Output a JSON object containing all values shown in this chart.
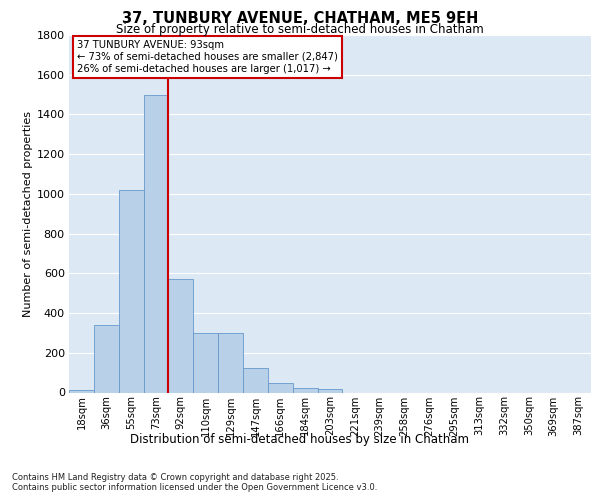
{
  "title1": "37, TUNBURY AVENUE, CHATHAM, ME5 9EH",
  "title2": "Size of property relative to semi-detached houses in Chatham",
  "xlabel": "Distribution of semi-detached houses by size in Chatham",
  "ylabel": "Number of semi-detached properties",
  "categories": [
    "18sqm",
    "36sqm",
    "55sqm",
    "73sqm",
    "92sqm",
    "110sqm",
    "129sqm",
    "147sqm",
    "166sqm",
    "184sqm",
    "203sqm",
    "221sqm",
    "239sqm",
    "258sqm",
    "276sqm",
    "295sqm",
    "313sqm",
    "332sqm",
    "350sqm",
    "369sqm",
    "387sqm"
  ],
  "values": [
    15,
    340,
    1020,
    1500,
    570,
    300,
    300,
    125,
    50,
    25,
    20,
    0,
    0,
    0,
    0,
    0,
    0,
    0,
    0,
    0,
    0
  ],
  "bar_color": "#b8d0e8",
  "bar_edge_color": "#6699cc",
  "annotation_line1": "37 TUNBURY AVENUE: 93sqm",
  "annotation_line2": "← 73% of semi-detached houses are smaller (2,847)",
  "annotation_line3": "26% of semi-detached houses are larger (1,017) →",
  "vline_x": 3.5,
  "ylim": [
    0,
    1800
  ],
  "yticks": [
    0,
    200,
    400,
    600,
    800,
    1000,
    1200,
    1400,
    1600,
    1800
  ],
  "plot_bg_color": "#dce9f5",
  "grid_color": "#ffffff",
  "footer1": "Contains HM Land Registry data © Crown copyright and database right 2025.",
  "footer2": "Contains public sector information licensed under the Open Government Licence v3.0.",
  "annotation_box_edgecolor": "#cc0000",
  "vline_color": "#cc0000"
}
